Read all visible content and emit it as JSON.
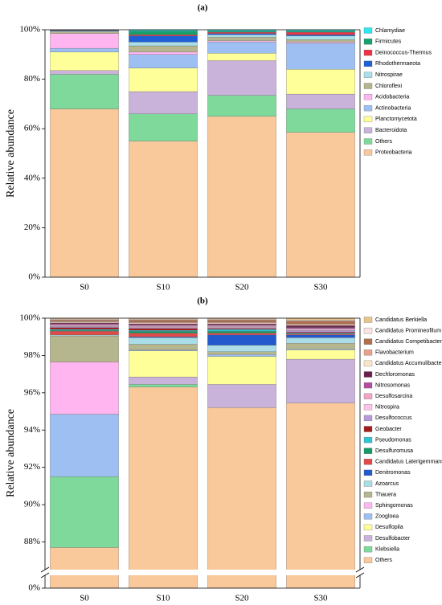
{
  "chart_data": [
    {
      "type": "stacked_bar",
      "title": "(a)",
      "ylabel": "Relative abundance",
      "categories": [
        "S0",
        "S10",
        "S20",
        "S30"
      ],
      "ylim": [
        0,
        100
      ],
      "yticks": [
        {
          "value": 0,
          "label": "0%"
        },
        {
          "value": 20,
          "label": "20%"
        },
        {
          "value": 40,
          "label": "40%"
        },
        {
          "value": 60,
          "label": "60%"
        },
        {
          "value": 80,
          "label": "80%"
        },
        {
          "value": 100,
          "label": "100%"
        }
      ],
      "series": [
        {
          "name": "Chlamydiae",
          "color": "#2ee6f0",
          "values": [
            0.1,
            0.5,
            0.5,
            0.5
          ]
        },
        {
          "name": "Firmicutes",
          "color": "#16a06b",
          "values": [
            0.1,
            1.5,
            0.5,
            0.5
          ]
        },
        {
          "name": "Deinococcus-Thermus",
          "color": "#ee3344",
          "values": [
            0.2,
            0.5,
            0.5,
            1
          ]
        },
        {
          "name": "Rhodothermaeota",
          "color": "#1f5fd6",
          "values": [
            0.2,
            2.5,
            0.5,
            0.5
          ]
        },
        {
          "name": "Nitrospirae",
          "color": "#a8dfe8",
          "values": [
            0.3,
            1.5,
            1,
            1.5
          ]
        },
        {
          "name": "Chloroflexi",
          "color": "#b5b58e",
          "values": [
            0.6,
            2.5,
            1.5,
            1
          ]
        },
        {
          "name": "Acidobacteria",
          "color": "#ffb5f0",
          "values": [
            6,
            1,
            0.5,
            0.5
          ]
        },
        {
          "name": "Actinobacteria",
          "color": "#9dbff2",
          "values": [
            1.5,
            5.5,
            4.5,
            10.5
          ]
        },
        {
          "name": "Planctomycetota",
          "color": "#ffff99",
          "values": [
            7.5,
            9.5,
            3,
            10
          ]
        },
        {
          "name": "Bacteroidota",
          "color": "#c9b3da",
          "values": [
            1.5,
            9,
            14,
            6
          ]
        },
        {
          "name": "Others",
          "color": "#7ed99b",
          "values": [
            14,
            11,
            8.5,
            9.5
          ]
        },
        {
          "name": "Proteobacteria",
          "color": "#f9c89b",
          "values": [
            68,
            55,
            65,
            58.5
          ]
        }
      ]
    },
    {
      "type": "stacked_bar",
      "title": "(b)",
      "ylabel": "Relative abundance",
      "categories": [
        "S0",
        "S10",
        "S20",
        "S30"
      ],
      "ylim": [
        86.6,
        100
      ],
      "axis_break": true,
      "yticks": [
        {
          "value": 0,
          "label": "0%"
        },
        {
          "value": 88,
          "label": "88%"
        },
        {
          "value": 90,
          "label": "90%"
        },
        {
          "value": 92,
          "label": "92%"
        },
        {
          "value": 94,
          "label": "94%"
        },
        {
          "value": 96,
          "label": "96%"
        },
        {
          "value": 98,
          "label": "98%"
        },
        {
          "value": 100,
          "label": "100%"
        }
      ],
      "series": [
        {
          "name": "Candidatus Berkiella",
          "color": "#e9c48a",
          "values": [
            0.05,
            0.05,
            0.05,
            0.1
          ]
        },
        {
          "name": "Candidatus Promineofilum",
          "color": "#fde3e3",
          "values": [
            0.05,
            0.05,
            0.05,
            0.05
          ]
        },
        {
          "name": "Candidatus Competibacter",
          "color": "#b0704f",
          "values": [
            0.05,
            0.1,
            0.1,
            0.15
          ]
        },
        {
          "name": "Flavobacterium",
          "color": "#e8a08a",
          "values": [
            0.05,
            0.05,
            0.05,
            0.05
          ]
        },
        {
          "name": "Candidatus Accumulibacter",
          "color": "#fbe7c6",
          "values": [
            0.05,
            0.05,
            0.05,
            0.05
          ]
        },
        {
          "name": "Dechloromonas",
          "color": "#6b1f4f",
          "values": [
            0.05,
            0.05,
            0.05,
            0.1
          ]
        },
        {
          "name": "Nitrosomonas",
          "color": "#b24ea0",
          "values": [
            0.05,
            0.05,
            0.05,
            0.05
          ]
        },
        {
          "name": "Desulfosarcina",
          "color": "#f2a3c6",
          "values": [
            0.05,
            0.05,
            0.05,
            0.05
          ]
        },
        {
          "name": "Nitrospira",
          "color": "#fbc3e8",
          "values": [
            0.05,
            0.05,
            0.05,
            0.05
          ]
        },
        {
          "name": "Desulfococcus",
          "color": "#b59bd6",
          "values": [
            0.05,
            0.05,
            0.05,
            0.1
          ]
        },
        {
          "name": "Geobacter",
          "color": "#a31a1a",
          "values": [
            0.1,
            0.1,
            0.05,
            0.05
          ]
        },
        {
          "name": "Pseudomonas",
          "color": "#2ec4d6",
          "values": [
            0.05,
            0.05,
            0.1,
            0.05
          ]
        },
        {
          "name": "Desulfuromusa",
          "color": "#159a68",
          "values": [
            0.05,
            0.1,
            0.1,
            0
          ]
        },
        {
          "name": "Candidatus Laterigemmans",
          "color": "#e04a48",
          "values": [
            0.2,
            0.2,
            0.1,
            0.05
          ]
        },
        {
          "name": "Denitromonas",
          "color": "#2259cc",
          "values": [
            0,
            0.05,
            0.55,
            0.15
          ]
        },
        {
          "name": "Azoarcus",
          "color": "#aadde6",
          "values": [
            0.05,
            0.35,
            0.35,
            0.3
          ]
        },
        {
          "name": "Thauera",
          "color": "#b5b58e",
          "values": [
            1.4,
            0.3,
            0.15,
            0.3
          ]
        },
        {
          "name": "Sphingomonas",
          "color": "#ffb5f0",
          "values": [
            2.8,
            0,
            0,
            0
          ]
        },
        {
          "name": "Zoogloea",
          "color": "#9dbff2",
          "values": [
            3.35,
            0.05,
            0.1,
            0.05
          ]
        },
        {
          "name": "Desulfopila",
          "color": "#ffff99",
          "values": [
            0,
            1.4,
            1.5,
            0.5
          ]
        },
        {
          "name": "Desulfobacter",
          "color": "#c9b3da",
          "values": [
            0,
            0.4,
            1.25,
            2.35
          ]
        },
        {
          "name": "Klebsiella",
          "color": "#7ed99b",
          "values": [
            3.8,
            0.15,
            0,
            0
          ]
        },
        {
          "name": "Others",
          "color": "#f9c89b",
          "values": [
            87.7,
            96.3,
            95.2,
            95.45
          ]
        }
      ]
    }
  ]
}
